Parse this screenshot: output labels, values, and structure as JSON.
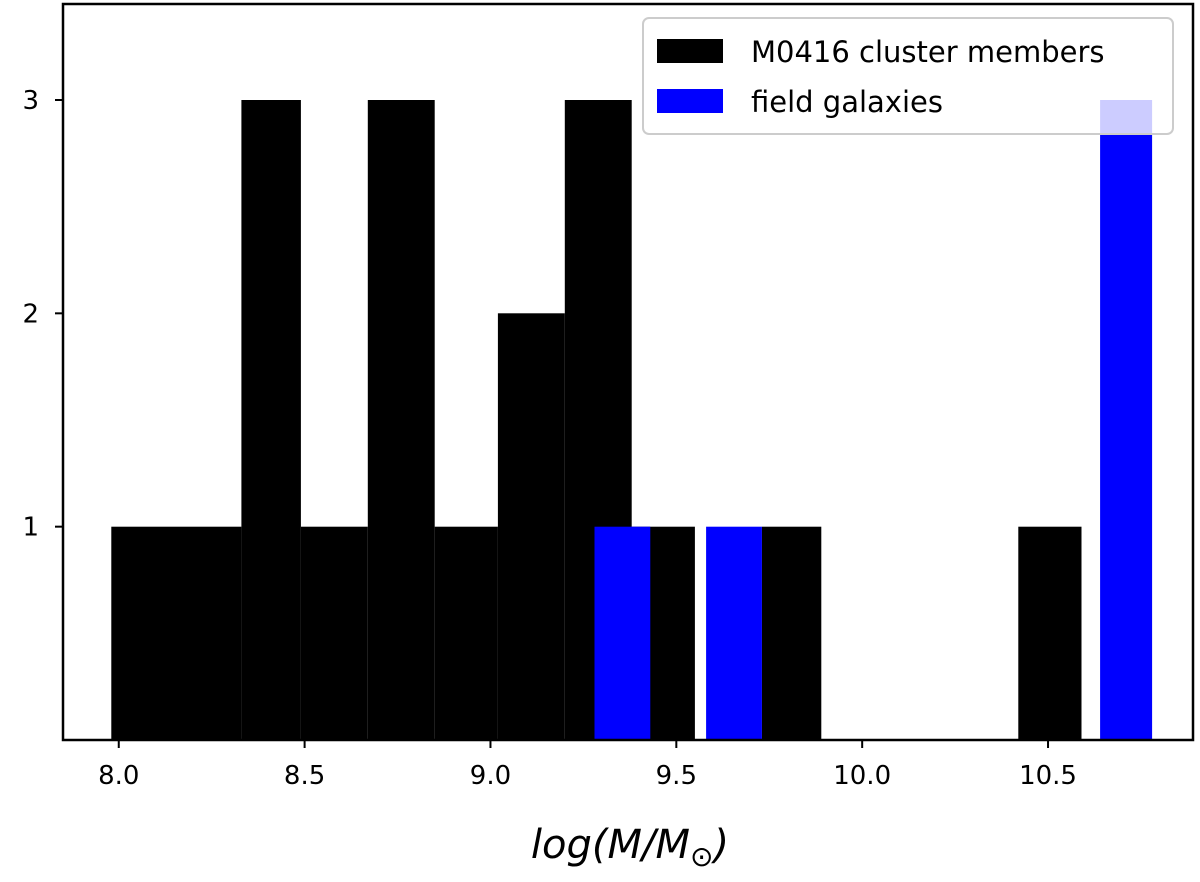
{
  "chart_data": {
    "type": "bar",
    "title": "",
    "xlabel": "log(M/M",
    "xlabel_sub": "⊙",
    "ylabel": "",
    "xlim": [
      7.85,
      10.89
    ],
    "ylim": [
      0,
      3.45
    ],
    "xticks": [
      8.0,
      8.5,
      9.0,
      9.5,
      10.0,
      10.5
    ],
    "xtick_labels": [
      "8.0",
      "8.5",
      "9.0",
      "9.5",
      "10.0",
      "10.5"
    ],
    "yticks": [
      1,
      2,
      3
    ],
    "ytick_labels": [
      "1",
      "2",
      "3"
    ],
    "legend_position": "top-right",
    "series": [
      {
        "name": "M0416 cluster members",
        "color": "#000000",
        "bins": [
          {
            "x0": 7.98,
            "x1": 8.33,
            "count": 1
          },
          {
            "x0": 8.33,
            "x1": 8.49,
            "count": 3
          },
          {
            "x0": 8.49,
            "x1": 8.67,
            "count": 1
          },
          {
            "x0": 8.67,
            "x1": 8.85,
            "count": 3
          },
          {
            "x0": 8.85,
            "x1": 9.02,
            "count": 1
          },
          {
            "x0": 9.02,
            "x1": 9.2,
            "count": 2
          },
          {
            "x0": 9.2,
            "x1": 9.38,
            "count": 3
          },
          {
            "x0": 9.38,
            "x1": 9.55,
            "count": 1
          },
          {
            "x0": 9.73,
            "x1": 9.89,
            "count": 1
          },
          {
            "x0": 10.42,
            "x1": 10.59,
            "count": 1
          }
        ]
      },
      {
        "name": "field galaxies",
        "color": "#0000ff",
        "bins": [
          {
            "x0": 9.28,
            "x1": 9.43,
            "count": 1
          },
          {
            "x0": 9.58,
            "x1": 9.73,
            "count": 1
          },
          {
            "x0": 10.64,
            "x1": 10.78,
            "count": 3
          }
        ]
      }
    ]
  }
}
